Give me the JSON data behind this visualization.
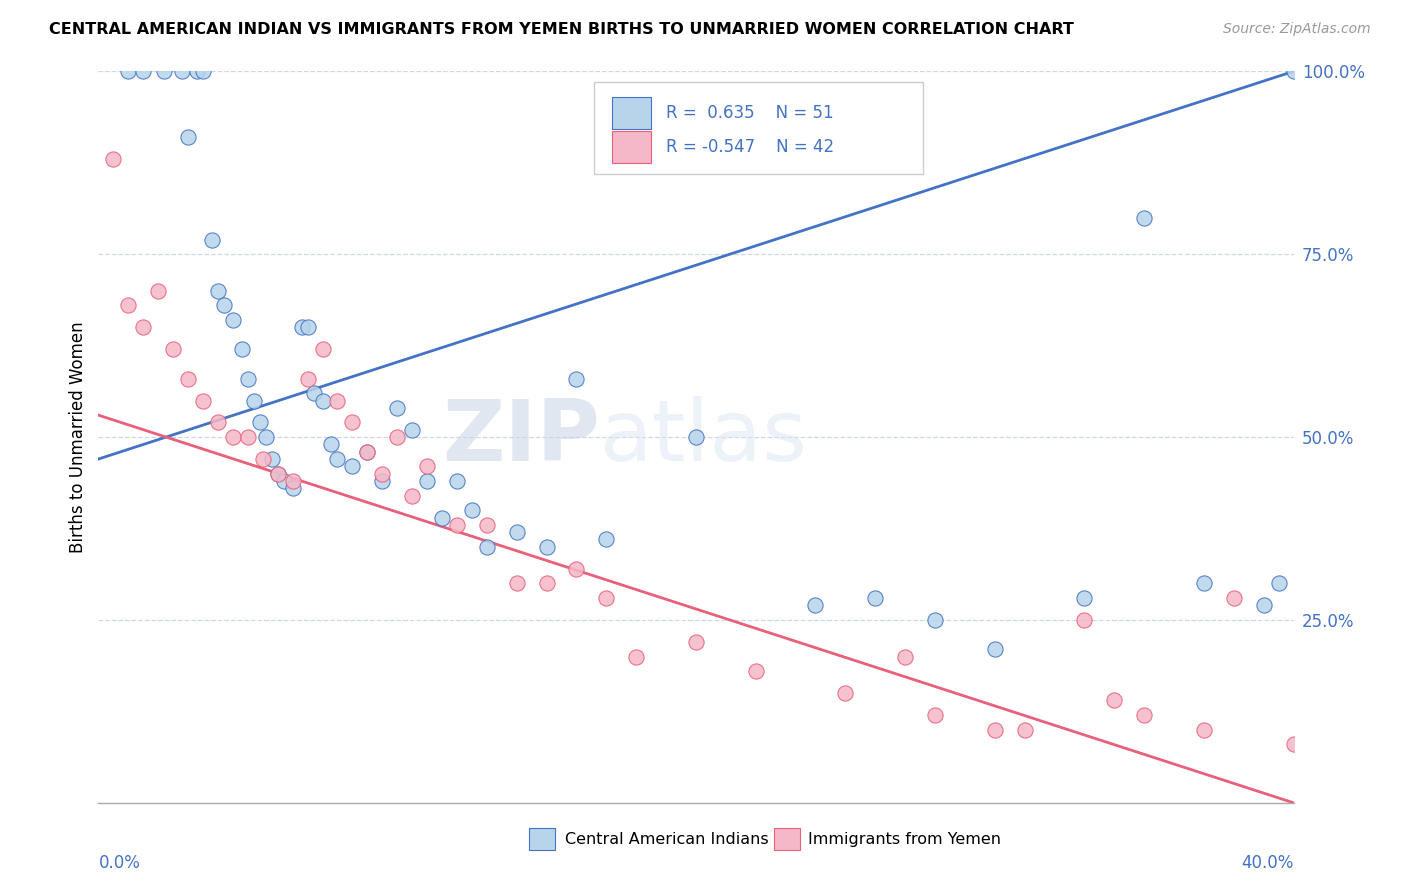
{
  "title": "CENTRAL AMERICAN INDIAN VS IMMIGRANTS FROM YEMEN BIRTHS TO UNMARRIED WOMEN CORRELATION CHART",
  "source": "Source: ZipAtlas.com",
  "ylabel": "Births to Unmarried Women",
  "xlim": [
    0.0,
    40.0
  ],
  "ylim": [
    0.0,
    100.0
  ],
  "series1_color": "#b8d4ea",
  "series2_color": "#f5b8c8",
  "line1_color": "#4472c4",
  "line2_color": "#e8607a",
  "watermark_zip": "ZIP",
  "watermark_atlas": "atlas",
  "legend_r1": "R =  0.635",
  "legend_n1": "N = 51",
  "legend_r2": "R = -0.547",
  "legend_n2": "N = 42",
  "legend_label1": "Central American Indians",
  "legend_label2": "Immigrants from Yemen",
  "blue_line_x0": 0.0,
  "blue_line_y0": 47.0,
  "blue_line_x1": 40.0,
  "blue_line_y1": 100.0,
  "pink_line_x0": 0.0,
  "pink_line_y0": 53.0,
  "pink_line_x1": 40.0,
  "pink_line_y1": 0.0,
  "blue_x": [
    1.0,
    1.5,
    2.2,
    2.8,
    3.0,
    3.3,
    3.5,
    3.8,
    4.0,
    4.2,
    4.5,
    4.8,
    5.0,
    5.2,
    5.4,
    5.6,
    5.8,
    6.0,
    6.2,
    6.5,
    6.8,
    7.0,
    7.2,
    7.5,
    7.8,
    8.0,
    8.5,
    9.0,
    9.5,
    10.0,
    10.5,
    11.0,
    11.5,
    12.0,
    12.5,
    13.0,
    14.0,
    15.0,
    16.0,
    17.0,
    20.0,
    24.0,
    26.0,
    28.0,
    30.0,
    33.0,
    35.0,
    37.0,
    39.0,
    39.5,
    40.0
  ],
  "blue_y": [
    100.0,
    100.0,
    100.0,
    100.0,
    91.0,
    100.0,
    100.0,
    77.0,
    70.0,
    68.0,
    66.0,
    62.0,
    58.0,
    55.0,
    52.0,
    50.0,
    47.0,
    45.0,
    44.0,
    43.0,
    65.0,
    65.0,
    56.0,
    55.0,
    49.0,
    47.0,
    46.0,
    48.0,
    44.0,
    54.0,
    51.0,
    44.0,
    39.0,
    44.0,
    40.0,
    35.0,
    37.0,
    35.0,
    58.0,
    36.0,
    50.0,
    27.0,
    28.0,
    25.0,
    21.0,
    28.0,
    80.0,
    30.0,
    27.0,
    30.0,
    100.0
  ],
  "pink_x": [
    0.5,
    1.0,
    1.5,
    2.0,
    2.5,
    3.0,
    3.5,
    4.0,
    4.5,
    5.0,
    5.5,
    6.0,
    6.5,
    7.0,
    7.5,
    8.0,
    8.5,
    9.0,
    9.5,
    10.0,
    10.5,
    11.0,
    12.0,
    13.0,
    14.0,
    15.0,
    16.0,
    17.0,
    18.0,
    20.0,
    22.0,
    25.0,
    27.0,
    28.0,
    30.0,
    31.0,
    33.0,
    34.0,
    35.0,
    37.0,
    38.0,
    40.0
  ],
  "pink_y": [
    88.0,
    68.0,
    65.0,
    70.0,
    62.0,
    58.0,
    55.0,
    52.0,
    50.0,
    50.0,
    47.0,
    45.0,
    44.0,
    58.0,
    62.0,
    55.0,
    52.0,
    48.0,
    45.0,
    50.0,
    42.0,
    46.0,
    38.0,
    38.0,
    30.0,
    30.0,
    32.0,
    28.0,
    20.0,
    22.0,
    18.0,
    15.0,
    20.0,
    12.0,
    10.0,
    10.0,
    25.0,
    14.0,
    12.0,
    10.0,
    28.0,
    8.0
  ]
}
